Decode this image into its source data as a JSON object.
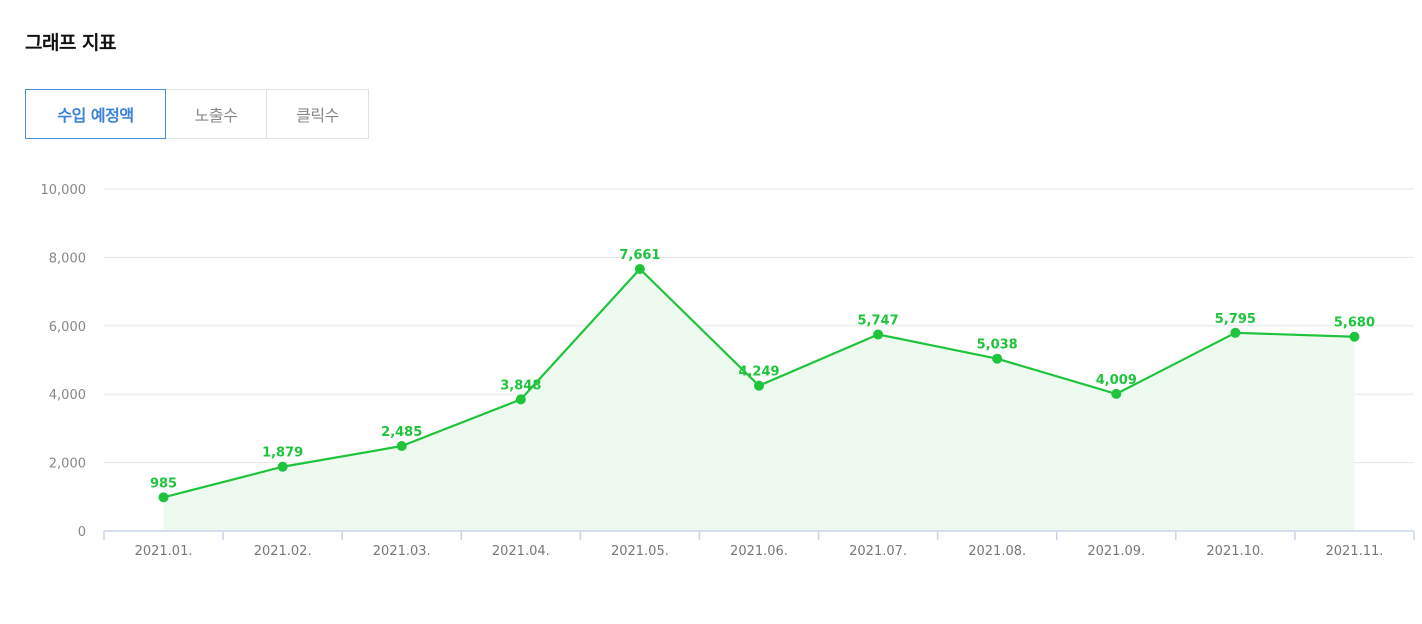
{
  "header": {
    "title": "그래프 지표"
  },
  "tabs": [
    {
      "label": "수입 예정액",
      "active": true
    },
    {
      "label": "노출수",
      "active": false
    },
    {
      "label": "클릭수",
      "active": false
    }
  ],
  "colors": {
    "line": "#1ec43c",
    "fill": "#eefaef",
    "grid": "#e6e6e6",
    "axis": "#c9d6ea",
    "active_tab": "#3b82dc"
  },
  "chart_data": {
    "type": "line",
    "categories": [
      "2021.01.",
      "2021.02.",
      "2021.03.",
      "2021.04.",
      "2021.05.",
      "2021.06.",
      "2021.07.",
      "2021.08.",
      "2021.09.",
      "2021.10.",
      "2021.11."
    ],
    "series": [
      {
        "values": [
          985,
          1879,
          2485,
          3848,
          7661,
          4249,
          5747,
          5038,
          4009,
          5795,
          5680
        ],
        "labels": [
          "985",
          "1,879",
          "2,485",
          "3,848",
          "7,661",
          "4,249",
          "5,747",
          "5,038",
          "4,009",
          "5,795",
          "5,680"
        ]
      }
    ],
    "yticks": [
      0,
      2000,
      4000,
      6000,
      8000,
      10000
    ],
    "ytick_labels": [
      "0",
      "2,000",
      "4,000",
      "6,000",
      "8,000",
      "10,000"
    ],
    "ylim": [
      0,
      10000
    ],
    "grid": true,
    "area_fill": true,
    "legend": false
  }
}
